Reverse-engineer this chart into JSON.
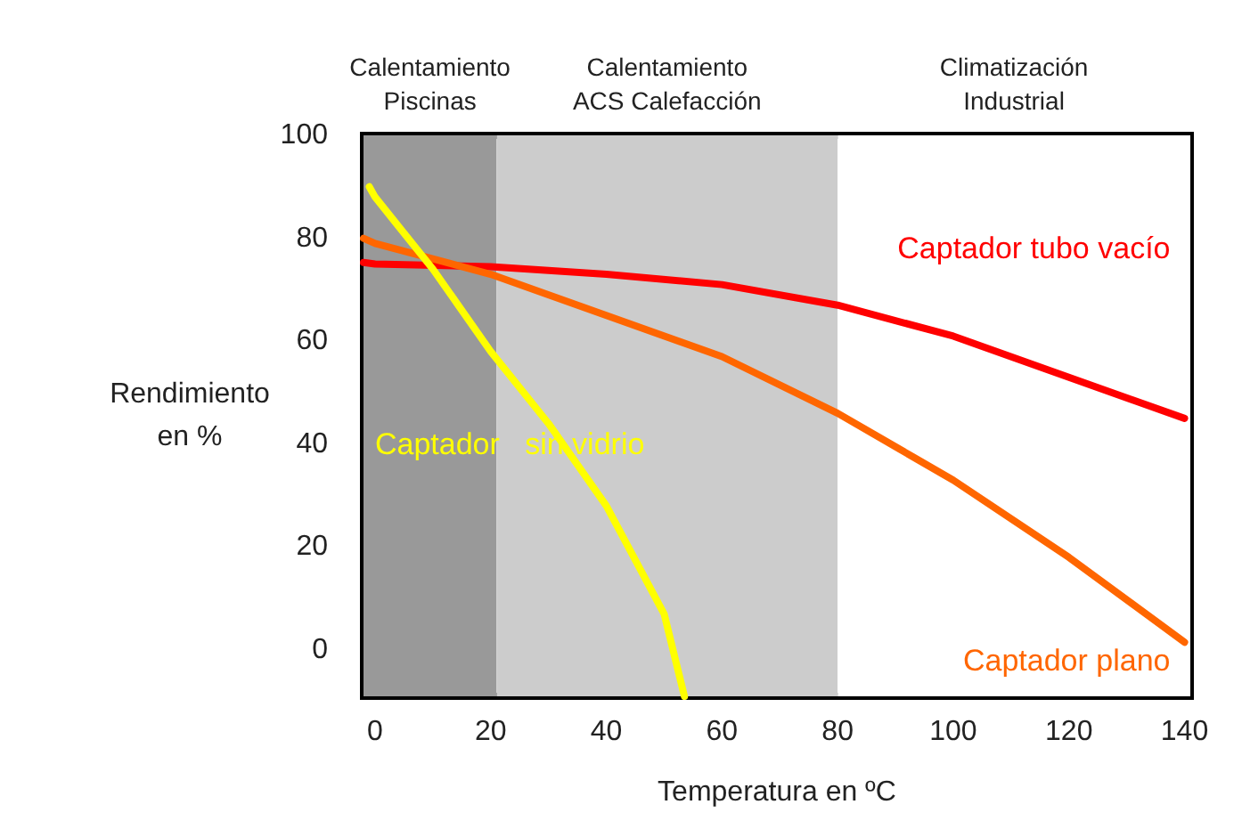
{
  "chart_data": {
    "type": "line",
    "xlabel": "Temperatura en ºC",
    "ylabel": "Rendimiento\nen %",
    "xlim": [
      -2,
      141
    ],
    "ylim": [
      -9,
      100
    ],
    "xticks": [
      0,
      20,
      40,
      60,
      80,
      100,
      120,
      140
    ],
    "yticks": [
      0,
      20,
      40,
      60,
      80,
      100
    ],
    "grid": false,
    "legend": false,
    "marker": "none",
    "line_style": "solid",
    "series": [
      {
        "name": "Captador tubo vacío",
        "color": "#ff0000",
        "x": [
          -2,
          0,
          20,
          40,
          60,
          80,
          100,
          120,
          140
        ],
        "values": [
          75.3,
          75,
          74.5,
          73,
          71,
          67,
          61,
          53,
          45
        ]
      },
      {
        "name": "Captador plano",
        "color": "#ff6600",
        "x": [
          -2,
          0,
          20,
          40,
          60,
          80,
          100,
          120,
          140
        ],
        "values": [
          80,
          79,
          73,
          65,
          57,
          46,
          33,
          18,
          1.5
        ]
      },
      {
        "name": "Captador   sin vidrio",
        "color": "#ffff00",
        "x": [
          -1,
          0,
          10,
          20,
          30,
          40,
          50,
          53.5
        ],
        "values": [
          90,
          88,
          74,
          58,
          44,
          28,
          7,
          -9
        ]
      }
    ],
    "bands": [
      {
        "axis": "x",
        "from": -2,
        "to": 21,
        "label": "Calentamiento\nPiscinas",
        "color": "#999999"
      },
      {
        "axis": "x",
        "from": 21,
        "to": 80,
        "label": "Calentamiento\nACS Calefacción",
        "color": "#cccccc"
      },
      {
        "axis": "x",
        "from": 80,
        "to": 141,
        "label": "Climatización\nIndustrial",
        "color": "#ffffff"
      }
    ]
  }
}
